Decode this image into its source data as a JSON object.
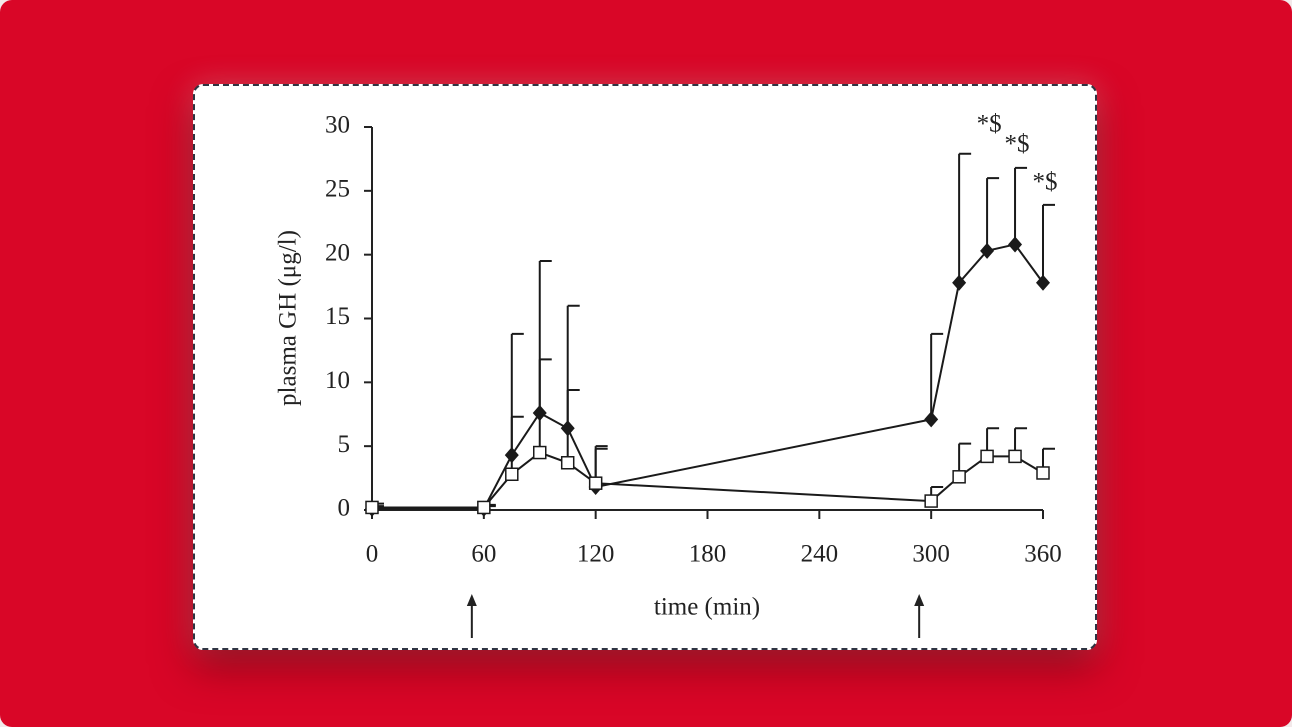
{
  "chart_data": {
    "type": "line",
    "x_label": "time (min)",
    "y_label": "plasma GH (μg/l)",
    "xlim": [
      0,
      360
    ],
    "xticks": [
      0,
      60,
      120,
      180,
      240,
      300,
      360
    ],
    "ylim": [
      0,
      30
    ],
    "yticks": [
      0,
      5,
      10,
      15,
      20,
      25,
      30
    ],
    "x": [
      0,
      60,
      75,
      90,
      105,
      120,
      300,
      315,
      330,
      345,
      360
    ],
    "series": [
      {
        "color": "#1a1a1a",
        "marker": "diamond",
        "values": [
          0.1,
          0.1,
          4.3,
          7.6,
          6.4,
          1.8,
          7.1,
          17.8,
          20.3,
          20.8,
          17.8
        ],
        "errors": [
          0.2,
          0.2,
          9.5,
          11.9,
          9.6,
          3.2,
          6.7,
          10.1,
          5.7,
          6.0,
          6.1
        ]
      },
      {
        "color": "#1a1a1a",
        "marker": "square",
        "values": [
          0.2,
          0.2,
          2.8,
          4.5,
          3.7,
          2.1,
          0.7,
          2.6,
          4.2,
          4.2,
          2.9
        ],
        "errors": [
          0.3,
          0.2,
          4.5,
          7.3,
          5.7,
          2.7,
          1.1,
          2.6,
          2.2,
          2.2,
          1.9
        ]
      }
    ],
    "annotations": [
      {
        "text": "*$",
        "x": 330
      },
      {
        "text": "*$",
        "x": 345
      },
      {
        "text": "*$",
        "x": 360
      }
    ],
    "arrows": [
      60,
      300
    ]
  }
}
